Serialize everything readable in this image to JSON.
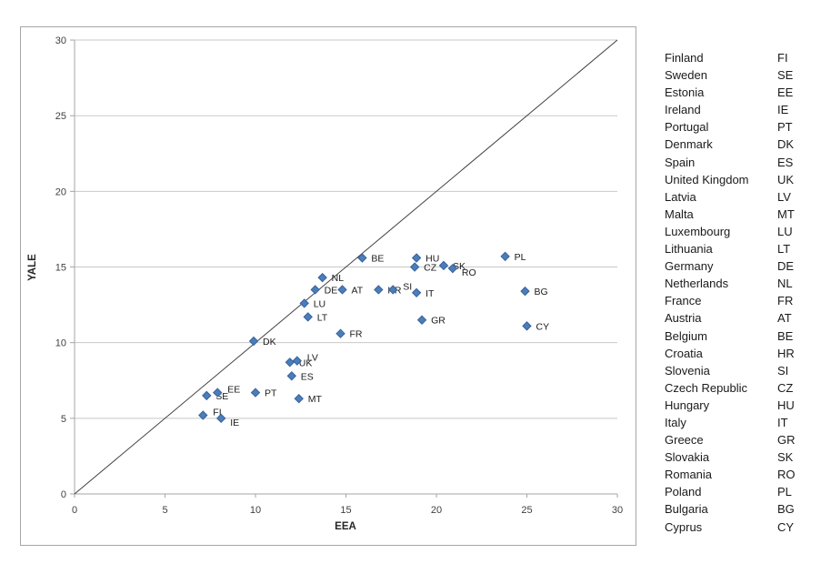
{
  "chart_data": {
    "type": "scatter",
    "title": "",
    "xlabel": "EEA",
    "ylabel": "YALE",
    "xlim": [
      0,
      30
    ],
    "ylim": [
      0,
      30
    ],
    "x_ticks": [
      0,
      5,
      10,
      15,
      20,
      25,
      30
    ],
    "y_ticks": [
      0,
      5,
      10,
      15,
      20,
      25,
      30
    ],
    "grid": "horizontal-only",
    "reference_line": {
      "from": [
        0,
        0
      ],
      "to": [
        30,
        30
      ]
    },
    "marker": {
      "shape": "diamond",
      "size": 9
    },
    "points": [
      {
        "code": "FI",
        "name": "Finland",
        "x": 7.1,
        "y": 5.2,
        "label_placement": "right-up"
      },
      {
        "code": "SE",
        "name": "Sweden",
        "x": 7.3,
        "y": 6.5,
        "label_placement": "right"
      },
      {
        "code": "EE",
        "name": "Estonia",
        "x": 7.9,
        "y": 6.7,
        "label_placement": "right-up"
      },
      {
        "code": "IE",
        "name": "Ireland",
        "x": 8.1,
        "y": 5.0,
        "label_placement": "right-down"
      },
      {
        "code": "PT",
        "name": "Portugal",
        "x": 10.0,
        "y": 6.7,
        "label_placement": "right"
      },
      {
        "code": "DK",
        "name": "Denmark",
        "x": 9.9,
        "y": 10.1,
        "label_placement": "right"
      },
      {
        "code": "ES",
        "name": "Spain",
        "x": 12.0,
        "y": 7.8,
        "label_placement": "right"
      },
      {
        "code": "UK",
        "name": "United Kingdom",
        "x": 11.9,
        "y": 8.7,
        "label_placement": "right"
      },
      {
        "code": "LV",
        "name": "Latvia",
        "x": 12.3,
        "y": 8.8,
        "label_placement": "right-up"
      },
      {
        "code": "MT",
        "name": "Malta",
        "x": 12.4,
        "y": 6.3,
        "label_placement": "right"
      },
      {
        "code": "LU",
        "name": "Luxembourg",
        "x": 12.7,
        "y": 12.6,
        "label_placement": "right"
      },
      {
        "code": "LT",
        "name": "Lithuania",
        "x": 12.9,
        "y": 11.7,
        "label_placement": "right"
      },
      {
        "code": "DE",
        "name": "Germany",
        "x": 13.3,
        "y": 13.5,
        "label_placement": "right"
      },
      {
        "code": "NL",
        "name": "Netherlands",
        "x": 13.7,
        "y": 14.3,
        "label_placement": "right"
      },
      {
        "code": "FR",
        "name": "France",
        "x": 14.7,
        "y": 10.6,
        "label_placement": "right"
      },
      {
        "code": "AT",
        "name": "Austria",
        "x": 14.8,
        "y": 13.5,
        "label_placement": "right"
      },
      {
        "code": "BE",
        "name": "Belgium",
        "x": 15.9,
        "y": 15.6,
        "label_placement": "right"
      },
      {
        "code": "HR",
        "name": "Croatia",
        "x": 16.8,
        "y": 13.5,
        "label_placement": "right"
      },
      {
        "code": "SI",
        "name": "Slovenia",
        "x": 17.6,
        "y": 13.5,
        "label_placement": "right-up"
      },
      {
        "code": "CZ",
        "name": "Czech Republic",
        "x": 18.8,
        "y": 15.0,
        "label_placement": "right"
      },
      {
        "code": "HU",
        "name": "Hungary",
        "x": 18.9,
        "y": 15.6,
        "label_placement": "right"
      },
      {
        "code": "IT",
        "name": "Italy",
        "x": 18.9,
        "y": 13.3,
        "label_placement": "right"
      },
      {
        "code": "GR",
        "name": "Greece",
        "x": 19.2,
        "y": 11.5,
        "label_placement": "right"
      },
      {
        "code": "SK",
        "name": "Slovakia",
        "x": 20.4,
        "y": 15.1,
        "label_placement": "right"
      },
      {
        "code": "RO",
        "name": "Romania",
        "x": 20.9,
        "y": 14.9,
        "label_placement": "right-down"
      },
      {
        "code": "PL",
        "name": "Poland",
        "x": 23.8,
        "y": 15.7,
        "label_placement": "right"
      },
      {
        "code": "BG",
        "name": "Bulgaria",
        "x": 24.9,
        "y": 13.4,
        "label_placement": "right"
      },
      {
        "code": "CY",
        "name": "Cyprus",
        "x": 25.0,
        "y": 11.1,
        "label_placement": "right"
      }
    ]
  },
  "legend": {
    "entries": [
      {
        "name": "Finland",
        "code": "FI"
      },
      {
        "name": "Sweden",
        "code": "SE"
      },
      {
        "name": "Estonia",
        "code": "EE"
      },
      {
        "name": "Ireland",
        "code": "IE"
      },
      {
        "name": "Portugal",
        "code": "PT"
      },
      {
        "name": "Denmark",
        "code": "DK"
      },
      {
        "name": "Spain",
        "code": "ES"
      },
      {
        "name": "United Kingdom",
        "code": "UK"
      },
      {
        "name": "Latvia",
        "code": "LV"
      },
      {
        "name": "Malta",
        "code": "MT"
      },
      {
        "name": "Luxembourg",
        "code": "LU"
      },
      {
        "name": "Lithuania",
        "code": "LT"
      },
      {
        "name": "Germany",
        "code": "DE"
      },
      {
        "name": "Netherlands",
        "code": "NL"
      },
      {
        "name": "France",
        "code": "FR"
      },
      {
        "name": "Austria",
        "code": "AT"
      },
      {
        "name": "Belgium",
        "code": "BE"
      },
      {
        "name": "Croatia",
        "code": "HR"
      },
      {
        "name": "Slovenia",
        "code": "SI"
      },
      {
        "name": "Czech Republic",
        "code": "CZ"
      },
      {
        "name": "Hungary",
        "code": "HU"
      },
      {
        "name": "Italy",
        "code": "IT"
      },
      {
        "name": "Greece",
        "code": "GR"
      },
      {
        "name": "Slovakia",
        "code": "SK"
      },
      {
        "name": "Romania",
        "code": "RO"
      },
      {
        "name": "Poland",
        "code": "PL"
      },
      {
        "name": "Bulgaria",
        "code": "BG"
      },
      {
        "name": "Cyprus",
        "code": "CY"
      }
    ]
  },
  "colors": {
    "marker_fill": "#4a7ebb",
    "marker_stroke": "#38619b",
    "gridline": "#c8c8c8",
    "axis_line": "#a6a6a6",
    "reference_line": "#404040",
    "tick_label": "#3f3f3f",
    "data_label": "#1a1a1a",
    "figure_border": "#a6a6a6"
  }
}
